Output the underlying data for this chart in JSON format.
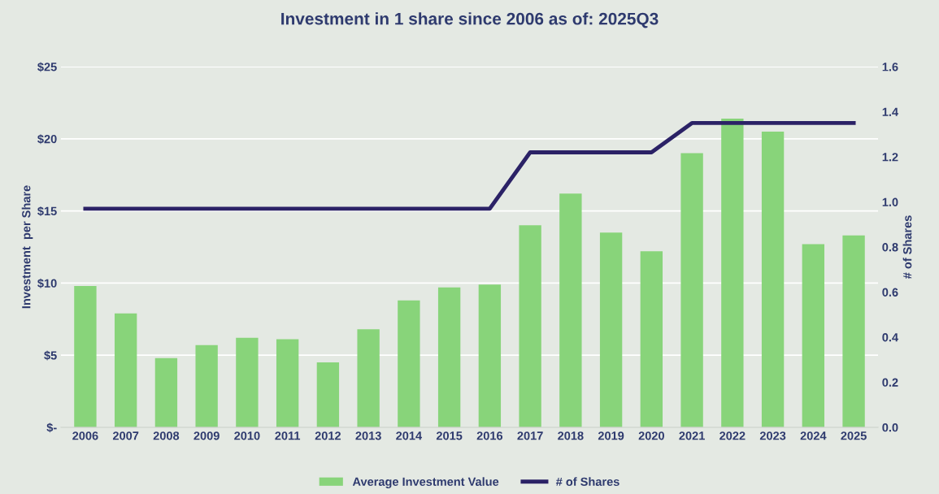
{
  "chart_data": {
    "type": "bar",
    "title": "Investment in 1 share since 2006 as of: 2025Q3",
    "categories": [
      "2006",
      "2007",
      "2008",
      "2009",
      "2010",
      "2011",
      "2012",
      "2013",
      "2014",
      "2015",
      "2016",
      "2017",
      "2018",
      "2019",
      "2020",
      "2021",
      "2022",
      "2023",
      "2024",
      "2025"
    ],
    "series": [
      {
        "name": "Average Investment Value",
        "color": "#88d47a",
        "values": [
          9.8,
          7.9,
          4.8,
          5.7,
          6.2,
          6.1,
          4.5,
          6.8,
          8.8,
          9.7,
          9.9,
          14.0,
          16.2,
          13.5,
          12.2,
          19.0,
          21.4,
          20.5,
          12.7,
          13.3
        ]
      },
      {
        "name": "# of Shares",
        "type": "line",
        "axis": "y2",
        "color": "#2b2266",
        "values": [
          0.97,
          0.97,
          0.97,
          0.97,
          0.97,
          0.97,
          0.97,
          0.97,
          0.97,
          0.97,
          0.97,
          1.22,
          1.22,
          1.22,
          1.22,
          1.35,
          1.35,
          1.35,
          1.35,
          1.35
        ]
      }
    ],
    "ylabel": "Investment  per Share",
    "y2label": "# of Shares",
    "ylim": [
      0,
      25
    ],
    "yticks": [
      {
        "value": 0,
        "label": "$-"
      },
      {
        "value": 5,
        "label": "$5"
      },
      {
        "value": 10,
        "label": "$10"
      },
      {
        "value": 15,
        "label": "$15"
      },
      {
        "value": 20,
        "label": "$20"
      },
      {
        "value": 25,
        "label": "$25"
      }
    ],
    "y2lim": [
      0,
      1.6
    ],
    "y2ticks": [
      {
        "value": 0,
        "label": "0.0"
      },
      {
        "value": 0.2,
        "label": "0.2"
      },
      {
        "value": 0.4,
        "label": "0.4"
      },
      {
        "value": 0.6,
        "label": "0.6"
      },
      {
        "value": 0.8,
        "label": "0.8"
      },
      {
        "value": 1.0,
        "label": "1.0"
      },
      {
        "value": 1.2,
        "label": "1.2"
      },
      {
        "value": 1.4,
        "label": "1.4"
      },
      {
        "value": 1.6,
        "label": "1.6"
      }
    ],
    "grid": "y",
    "legend": "bottom",
    "marker": "none",
    "line_style": "solid"
  }
}
